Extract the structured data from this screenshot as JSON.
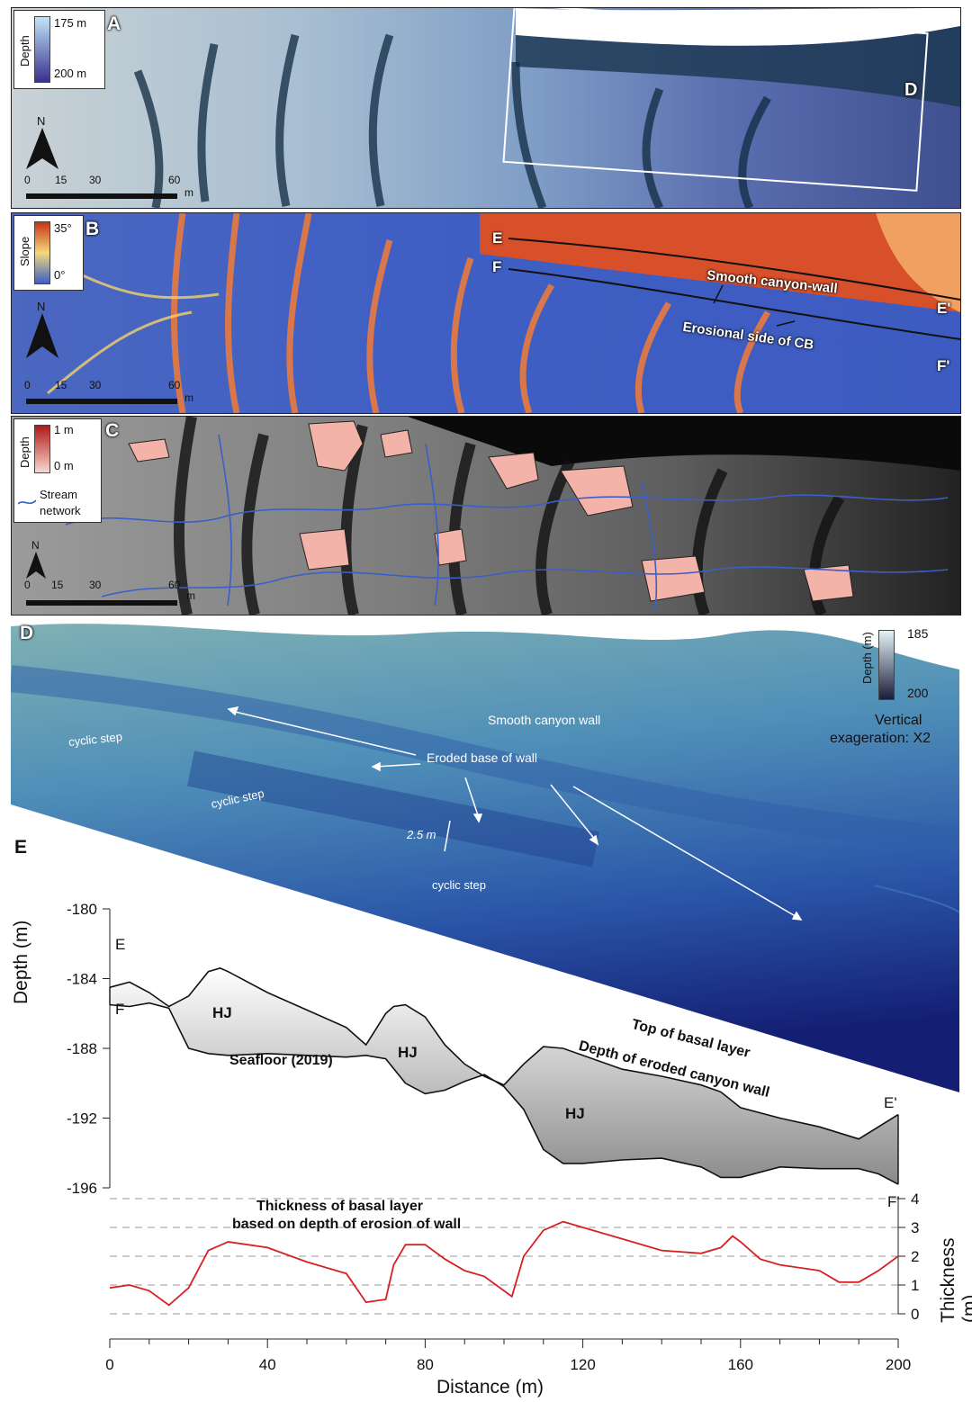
{
  "panel_a": {
    "letter": "A",
    "legend_title": "Depth",
    "legend_top": "175 m",
    "legend_bottom": "200 m",
    "north": "N",
    "scale_labels": [
      "0",
      "15",
      "30",
      "60"
    ],
    "scale_unit": "m",
    "box_label": "D"
  },
  "panel_b": {
    "letter": "B",
    "legend_title": "Slope",
    "legend_top": "35°",
    "legend_bottom": "0°",
    "north": "N",
    "scale_labels": [
      "0",
      "15",
      "30",
      "60"
    ],
    "scale_unit": "m",
    "label_e": "E",
    "label_f": "F",
    "label_e2": "E'",
    "label_f2": "F'",
    "smooth_wall": "Smooth canyon-wall",
    "erosional": "Erosional side of CB"
  },
  "panel_c": {
    "letter": "C",
    "legend_title": "Depth",
    "legend_top": "1 m",
    "legend_bottom": "0 m",
    "stream1": "Stream",
    "stream2": "network",
    "north": "N",
    "scale_labels": [
      "0",
      "15",
      "30",
      "60"
    ],
    "scale_unit": "m"
  },
  "panel_d": {
    "letter": "D",
    "legend_title": "Depth (m)",
    "legend_top": "185",
    "legend_bottom": "200",
    "vert1": "Vertical",
    "vert2": "exageration: X2",
    "smooth_wall": "Smooth canyon wall",
    "eroded": "Eroded base of wall",
    "cyclic1": "cyclic step",
    "cyclic2": "cyclic step",
    "cyclic3": "cyclic step",
    "scale_25": "2.5 m"
  },
  "panel_e": {
    "letter": "E",
    "ylabel": "Depth (m)",
    "xlabel": "Distance (m)",
    "thickness_label": "Thickness (m)",
    "label_e": "E",
    "label_f": "F",
    "label_e2": "E'",
    "label_f2": "F'",
    "hj": "HJ",
    "seafloor": "Seafloor (2019)",
    "top1": "Top of basal layer",
    "top2": "Depth of eroded canyon wall",
    "thick1": "Thickness of basal layer",
    "thick2": "based on depth of erosion of wall"
  },
  "chart_data": {
    "type": "line",
    "xlim": [
      0,
      200
    ],
    "x_ticks": [
      0,
      40,
      80,
      120,
      160,
      200
    ],
    "profile_ylim": [
      -196,
      -180
    ],
    "profile_y_ticks": [
      -180,
      -184,
      -188,
      -192,
      -196
    ],
    "thickness_ylim": [
      0,
      4
    ],
    "thickness_y_ticks": [
      0,
      1,
      2,
      3,
      4
    ],
    "series": [
      {
        "name": "Seafloor (2019)",
        "x": [
          0,
          5,
          10,
          15,
          20,
          25,
          30,
          40,
          50,
          60,
          65,
          70,
          75,
          80,
          85,
          90,
          95,
          100,
          105,
          110,
          115,
          120,
          130,
          140,
          150,
          155,
          160,
          170,
          180,
          190,
          195,
          200
        ],
        "y": [
          -185.5,
          -185.6,
          -185.4,
          -185.7,
          -188.0,
          -188.3,
          -188.4,
          -188.3,
          -188.4,
          -188.5,
          -188.4,
          -188.6,
          -190.0,
          -190.6,
          -190.4,
          -189.9,
          -189.5,
          -190.2,
          -191.5,
          -193.8,
          -194.6,
          -194.6,
          -194.4,
          -194.3,
          -194.8,
          -195.4,
          -195.4,
          -194.8,
          -194.9,
          -194.9,
          -195.2,
          -195.8
        ]
      },
      {
        "name": "Top of basal layer",
        "x": [
          0,
          5,
          10,
          15,
          20,
          25,
          28,
          30,
          40,
          50,
          60,
          65,
          70,
          72,
          75,
          80,
          85,
          90,
          95,
          100,
          105,
          110,
          115,
          120,
          130,
          140,
          150,
          155,
          160,
          170,
          180,
          190,
          195,
          200
        ],
        "y": [
          -184.5,
          -184.2,
          -184.8,
          -185.6,
          -185.0,
          -183.6,
          -183.4,
          -183.6,
          -184.8,
          -185.8,
          -186.8,
          -187.8,
          -186.0,
          -185.6,
          -185.5,
          -186.2,
          -187.8,
          -188.9,
          -189.6,
          -190.1,
          -188.9,
          -187.9,
          -188.0,
          -188.4,
          -189.2,
          -189.6,
          -190.1,
          -190.5,
          -191.4,
          -192.0,
          -192.5,
          -193.2,
          -192.5,
          -191.8
        ]
      },
      {
        "name": "Thickness",
        "x": [
          0,
          5,
          10,
          15,
          20,
          25,
          30,
          40,
          50,
          60,
          65,
          70,
          72,
          75,
          80,
          85,
          90,
          95,
          100,
          102,
          105,
          110,
          115,
          120,
          130,
          140,
          150,
          155,
          158,
          160,
          165,
          170,
          180,
          185,
          190,
          195,
          200
        ],
        "y": [
          0.9,
          1.0,
          0.8,
          0.3,
          0.9,
          2.2,
          2.5,
          2.3,
          1.8,
          1.4,
          0.4,
          0.5,
          1.7,
          2.4,
          2.4,
          1.9,
          1.5,
          1.3,
          0.8,
          0.6,
          2.0,
          2.9,
          3.2,
          3.0,
          2.6,
          2.2,
          2.1,
          2.3,
          2.7,
          2.5,
          1.9,
          1.7,
          1.5,
          1.1,
          1.1,
          1.5,
          2.0
        ]
      }
    ],
    "annotations": [
      "HJ",
      "HJ",
      "HJ"
    ]
  }
}
